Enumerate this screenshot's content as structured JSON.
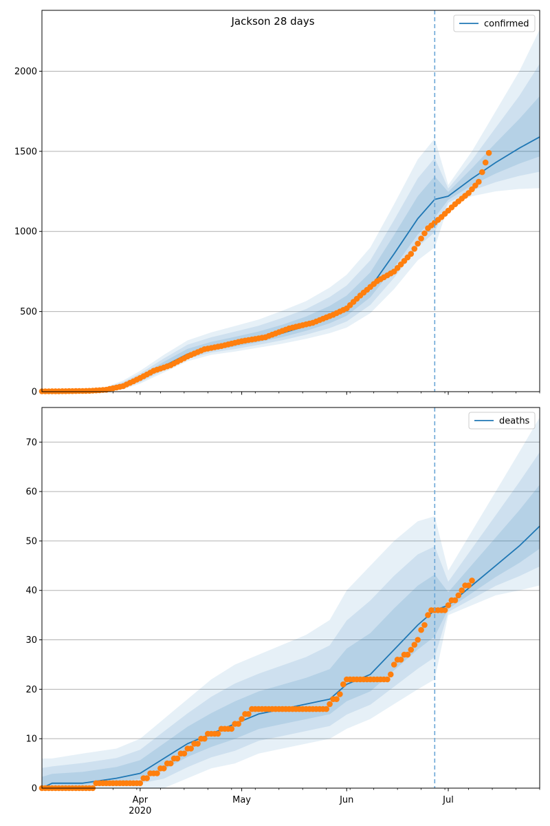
{
  "figure": {
    "title": "Jackson 28 days"
  },
  "chart_data": [
    {
      "type": "line",
      "name": "confirmed-panel",
      "title": "Jackson 28 days",
      "xlabel": "",
      "ylabel": "",
      "x_range": [
        "2020-03-03",
        "2020-07-28"
      ],
      "ylim": [
        0,
        2380
      ],
      "yticks": [
        0,
        500,
        1000,
        1500,
        2000
      ],
      "xticks": [
        {
          "date": "2020-04-01",
          "label": "Apr",
          "sublabel": "2020"
        },
        {
          "date": "2020-05-01",
          "label": "May",
          "sublabel": ""
        },
        {
          "date": "2020-06-01",
          "label": "Jun",
          "sublabel": ""
        },
        {
          "date": "2020-07-01",
          "label": "Jul",
          "sublabel": ""
        }
      ],
      "grid": "y",
      "legend": {
        "position": "top-right",
        "entries": [
          "confirmed"
        ]
      },
      "vline_date": "2020-06-27",
      "colors": {
        "line": "#1f77b4",
        "points": "#ff7f0e",
        "band": "#1f77b4",
        "vline": "#6aa6d6"
      },
      "model": {
        "name": "confirmed",
        "x": [
          "2020-03-03",
          "2020-03-10",
          "2020-03-17",
          "2020-03-22",
          "2020-03-27",
          "2020-04-01",
          "2020-04-08",
          "2020-04-15",
          "2020-04-22",
          "2020-04-29",
          "2020-05-06",
          "2020-05-13",
          "2020-05-20",
          "2020-05-27",
          "2020-06-01",
          "2020-06-08",
          "2020-06-15",
          "2020-06-22",
          "2020-06-27",
          "2020-07-01",
          "2020-07-08",
          "2020-07-15",
          "2020-07-22",
          "2020-07-28"
        ],
        "y": [
          2,
          3,
          6,
          15,
          40,
          80,
          160,
          235,
          275,
          300,
          330,
          365,
          410,
          465,
          520,
          650,
          860,
          1080,
          1200,
          1220,
          1330,
          1430,
          1520,
          1590
        ],
        "lower95": [
          0,
          0,
          0,
          2,
          15,
          50,
          120,
          190,
          230,
          250,
          275,
          300,
          330,
          365,
          400,
          490,
          640,
          820,
          900,
          1160,
          1220,
          1250,
          1265,
          1270
        ],
        "upper95": [
          6,
          8,
          15,
          30,
          70,
          130,
          230,
          320,
          370,
          410,
          450,
          505,
          565,
          650,
          730,
          900,
          1170,
          1450,
          1580,
          1290,
          1500,
          1750,
          2000,
          2260
        ]
      },
      "observed": {
        "x": [
          "2020-03-03",
          "2020-03-10",
          "2020-03-17",
          "2020-03-22",
          "2020-03-27",
          "2020-04-01",
          "2020-04-05",
          "2020-04-10",
          "2020-04-15",
          "2020-04-20",
          "2020-04-25",
          "2020-05-01",
          "2020-05-08",
          "2020-05-15",
          "2020-05-22",
          "2020-05-28",
          "2020-06-01",
          "2020-06-05",
          "2020-06-10",
          "2020-06-15",
          "2020-06-20",
          "2020-06-25",
          "2020-06-29",
          "2020-07-03",
          "2020-07-07",
          "2020-07-10",
          "2020-07-13"
        ],
        "y": [
          2,
          3,
          5,
          12,
          35,
          85,
          130,
          165,
          220,
          265,
          285,
          315,
          340,
          395,
          430,
          480,
          520,
          600,
          690,
          750,
          860,
          1020,
          1090,
          1170,
          1240,
          1310,
          1490
        ]
      }
    },
    {
      "type": "line",
      "name": "deaths-panel",
      "title": "",
      "xlabel": "",
      "ylabel": "",
      "x_range": [
        "2020-03-03",
        "2020-07-28"
      ],
      "ylim": [
        0,
        77
      ],
      "yticks": [
        0,
        10,
        20,
        30,
        40,
        50,
        60,
        70
      ],
      "xticks": [
        {
          "date": "2020-04-01",
          "label": "Apr",
          "sublabel": "2020"
        },
        {
          "date": "2020-05-01",
          "label": "May",
          "sublabel": ""
        },
        {
          "date": "2020-06-01",
          "label": "Jun",
          "sublabel": ""
        },
        {
          "date": "2020-07-01",
          "label": "Jul",
          "sublabel": ""
        }
      ],
      "grid": "y",
      "legend": {
        "position": "top-right",
        "entries": [
          "deaths"
        ]
      },
      "vline_date": "2020-06-27",
      "colors": {
        "line": "#1f77b4",
        "points": "#ff7f0e",
        "band": "#1f77b4",
        "vline": "#6aa6d6"
      },
      "model": {
        "name": "deaths",
        "x": [
          "2020-03-03",
          "2020-03-06",
          "2020-03-15",
          "2020-03-25",
          "2020-04-01",
          "2020-04-08",
          "2020-04-15",
          "2020-04-22",
          "2020-04-29",
          "2020-05-06",
          "2020-05-13",
          "2020-05-20",
          "2020-05-27",
          "2020-06-01",
          "2020-06-08",
          "2020-06-15",
          "2020-06-22",
          "2020-06-27",
          "2020-07-01",
          "2020-07-08",
          "2020-07-15",
          "2020-07-22",
          "2020-07-28"
        ],
        "y": [
          0,
          1,
          1,
          2,
          3,
          6,
          9,
          11,
          13,
          15,
          16,
          17,
          18,
          21,
          23,
          28,
          33,
          36,
          37,
          41,
          45,
          49,
          53
        ],
        "lower95": [
          0,
          0,
          0,
          0,
          0,
          0,
          2,
          4,
          5,
          7,
          8,
          9,
          10,
          12,
          14,
          17,
          20,
          22,
          35,
          37,
          39,
          40,
          41
        ],
        "upper95": [
          6,
          6,
          7,
          8,
          10,
          14,
          18,
          22,
          25,
          27,
          29,
          31,
          34,
          40,
          45,
          50,
          54,
          55,
          44,
          52,
          60,
          68,
          75
        ]
      },
      "observed": {
        "x": [
          "2020-03-03",
          "2020-03-10",
          "2020-03-17",
          "2020-03-20",
          "2020-03-27",
          "2020-04-01",
          "2020-04-05",
          "2020-04-10",
          "2020-04-14",
          "2020-04-18",
          "2020-04-22",
          "2020-04-28",
          "2020-05-01",
          "2020-05-05",
          "2020-05-10",
          "2020-05-20",
          "2020-05-26",
          "2020-05-30",
          "2020-06-01",
          "2020-06-05",
          "2020-06-10",
          "2020-06-13",
          "2020-06-16",
          "2020-06-19",
          "2020-06-22",
          "2020-06-26",
          "2020-06-30",
          "2020-07-04",
          "2020-07-08"
        ],
        "y": [
          0,
          0,
          0,
          1,
          1,
          1,
          3,
          5,
          7,
          9,
          11,
          12,
          14,
          16,
          16,
          16,
          16,
          19,
          22,
          22,
          22,
          22,
          26,
          27,
          30,
          36,
          36,
          39,
          42
        ]
      }
    }
  ]
}
